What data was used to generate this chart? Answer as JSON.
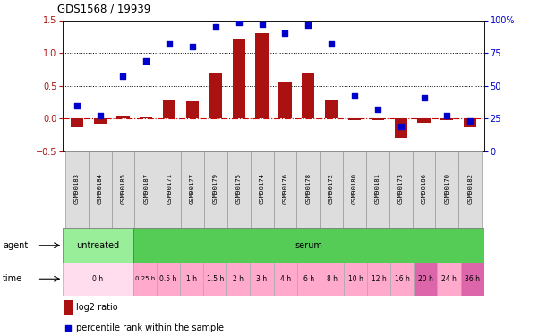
{
  "title": "GDS1568 / 19939",
  "samples": [
    "GSM90183",
    "GSM90184",
    "GSM90185",
    "GSM90187",
    "GSM90171",
    "GSM90177",
    "GSM90179",
    "GSM90175",
    "GSM90174",
    "GSM90176",
    "GSM90178",
    "GSM90172",
    "GSM90180",
    "GSM90181",
    "GSM90173",
    "GSM90186",
    "GSM90170",
    "GSM90182"
  ],
  "log2_ratio": [
    -0.13,
    -0.08,
    0.04,
    0.02,
    0.28,
    0.26,
    0.68,
    1.22,
    1.3,
    0.57,
    0.68,
    0.27,
    -0.03,
    -0.03,
    -0.3,
    -0.07,
    -0.02,
    -0.13
  ],
  "pct_rank": [
    35,
    27,
    57,
    69,
    82,
    80,
    95,
    98,
    97,
    90,
    96,
    82,
    42,
    32,
    19,
    41,
    27,
    23
  ],
  "bar_color": "#aa1111",
  "dot_color": "#0000cc",
  "ylim_left": [
    -0.5,
    1.5
  ],
  "ylim_right": [
    0,
    100
  ],
  "yticks_left": [
    -0.5,
    0.0,
    0.5,
    1.0,
    1.5
  ],
  "yticks_right": [
    0,
    25,
    50,
    75,
    100
  ],
  "agent_labels": [
    {
      "label": "untreated",
      "start": 0,
      "end": 3,
      "color": "#99ee99"
    },
    {
      "label": "serum",
      "start": 3,
      "end": 18,
      "color": "#55cc55"
    }
  ],
  "time_labels": [
    {
      "label": "0 h",
      "start": 0,
      "end": 3,
      "color": "#ffddee"
    },
    {
      "label": "0.25 h",
      "start": 3,
      "end": 4,
      "color": "#ffaacc"
    },
    {
      "label": "0.5 h",
      "start": 4,
      "end": 5,
      "color": "#ffaacc"
    },
    {
      "label": "1 h",
      "start": 5,
      "end": 6,
      "color": "#ffaacc"
    },
    {
      "label": "1.5 h",
      "start": 6,
      "end": 7,
      "color": "#ffaacc"
    },
    {
      "label": "2 h",
      "start": 7,
      "end": 8,
      "color": "#ffaacc"
    },
    {
      "label": "3 h",
      "start": 8,
      "end": 9,
      "color": "#ffaacc"
    },
    {
      "label": "4 h",
      "start": 9,
      "end": 10,
      "color": "#ffaacc"
    },
    {
      "label": "6 h",
      "start": 10,
      "end": 11,
      "color": "#ffaacc"
    },
    {
      "label": "8 h",
      "start": 11,
      "end": 12,
      "color": "#ffaacc"
    },
    {
      "label": "10 h",
      "start": 12,
      "end": 13,
      "color": "#ffaacc"
    },
    {
      "label": "12 h",
      "start": 13,
      "end": 14,
      "color": "#ffaacc"
    },
    {
      "label": "16 h",
      "start": 14,
      "end": 15,
      "color": "#ffaacc"
    },
    {
      "label": "20 h",
      "start": 15,
      "end": 16,
      "color": "#dd66aa"
    },
    {
      "label": "24 h",
      "start": 16,
      "end": 17,
      "color": "#ffaacc"
    },
    {
      "label": "36 h",
      "start": 17,
      "end": 18,
      "color": "#dd66aa"
    }
  ],
  "legend_bar_label": "log2 ratio",
  "legend_dot_label": "percentile rank within the sample",
  "bg_color": "#ffffff",
  "zero_line_color": "#cc0000",
  "dotted_line_color": "#000000"
}
